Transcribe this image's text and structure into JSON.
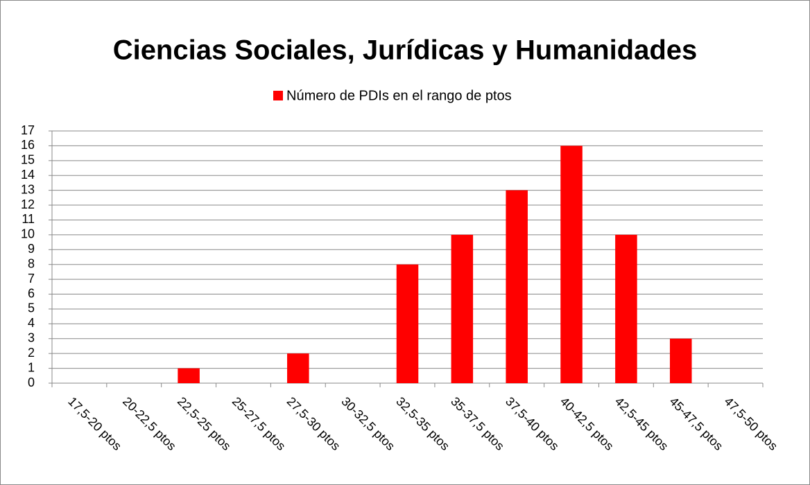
{
  "chart_data": {
    "type": "bar",
    "title": "Ciencias Sociales, Jurídicas y Humanidades",
    "categories": [
      "17,5-20 ptos",
      "20-22,5 ptos",
      "22,5-25 ptos",
      "25-27,5 ptos",
      "27,5-30 ptos",
      "30-32,5 ptos",
      "32,5-35 ptos",
      "35-37,5 ptos",
      "37,5-40 ptos",
      "40-42,5 ptos",
      "42,5-45 ptos",
      "45-47,5 ptos",
      "47,5-50 ptos"
    ],
    "series": [
      {
        "name": "Número de PDIs en el rango de ptos",
        "color": "#ff0000",
        "values": [
          0,
          0,
          1,
          0,
          2,
          0,
          8,
          10,
          13,
          16,
          10,
          3,
          0
        ]
      }
    ],
    "ylim": [
      0,
      17
    ],
    "yticks": [
      0,
      1,
      2,
      3,
      4,
      5,
      6,
      7,
      8,
      9,
      10,
      11,
      12,
      13,
      14,
      15,
      16,
      17
    ],
    "grid": true,
    "legend": "top"
  }
}
